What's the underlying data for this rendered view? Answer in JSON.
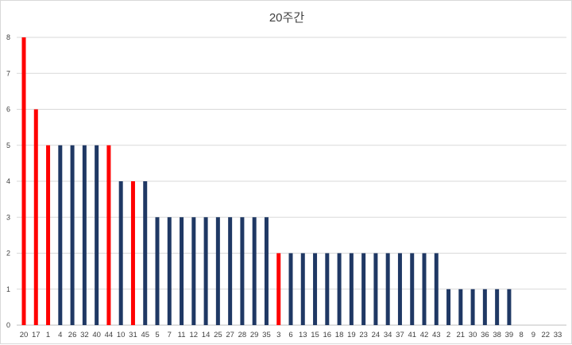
{
  "chart_data": {
    "type": "bar",
    "title": "20주간",
    "xlabel": "",
    "ylabel": "",
    "ylim": [
      0,
      8
    ],
    "yticks": [
      0,
      1,
      2,
      3,
      4,
      5,
      6,
      7,
      8
    ],
    "grid": true,
    "legend": "none",
    "categories": [
      "20",
      "17",
      "1",
      "4",
      "26",
      "32",
      "40",
      "44",
      "10",
      "31",
      "45",
      "5",
      "7",
      "11",
      "12",
      "14",
      "25",
      "27",
      "28",
      "29",
      "35",
      "3",
      "6",
      "13",
      "15",
      "16",
      "18",
      "19",
      "23",
      "24",
      "34",
      "37",
      "41",
      "42",
      "43",
      "2",
      "21",
      "30",
      "36",
      "38",
      "39",
      "8",
      "9",
      "22",
      "33"
    ],
    "values": [
      8,
      6,
      5,
      5,
      5,
      5,
      5,
      5,
      4,
      4,
      4,
      3,
      3,
      3,
      3,
      3,
      3,
      3,
      3,
      3,
      3,
      2,
      2,
      2,
      2,
      2,
      2,
      2,
      2,
      2,
      2,
      2,
      2,
      2,
      2,
      1,
      1,
      1,
      1,
      1,
      1,
      0,
      0,
      0,
      0
    ],
    "highlighted": [
      true,
      true,
      true,
      false,
      false,
      false,
      false,
      true,
      false,
      true,
      false,
      false,
      false,
      false,
      false,
      false,
      false,
      false,
      false,
      false,
      false,
      true,
      false,
      false,
      false,
      false,
      false,
      false,
      false,
      false,
      false,
      false,
      false,
      false,
      false,
      false,
      false,
      false,
      false,
      false,
      false,
      false,
      false,
      false,
      false
    ],
    "colors": {
      "highlight": "#ff0000",
      "default": "#1f3864",
      "grid": "#d9d9d9",
      "axis": "#bfbfbf"
    }
  }
}
